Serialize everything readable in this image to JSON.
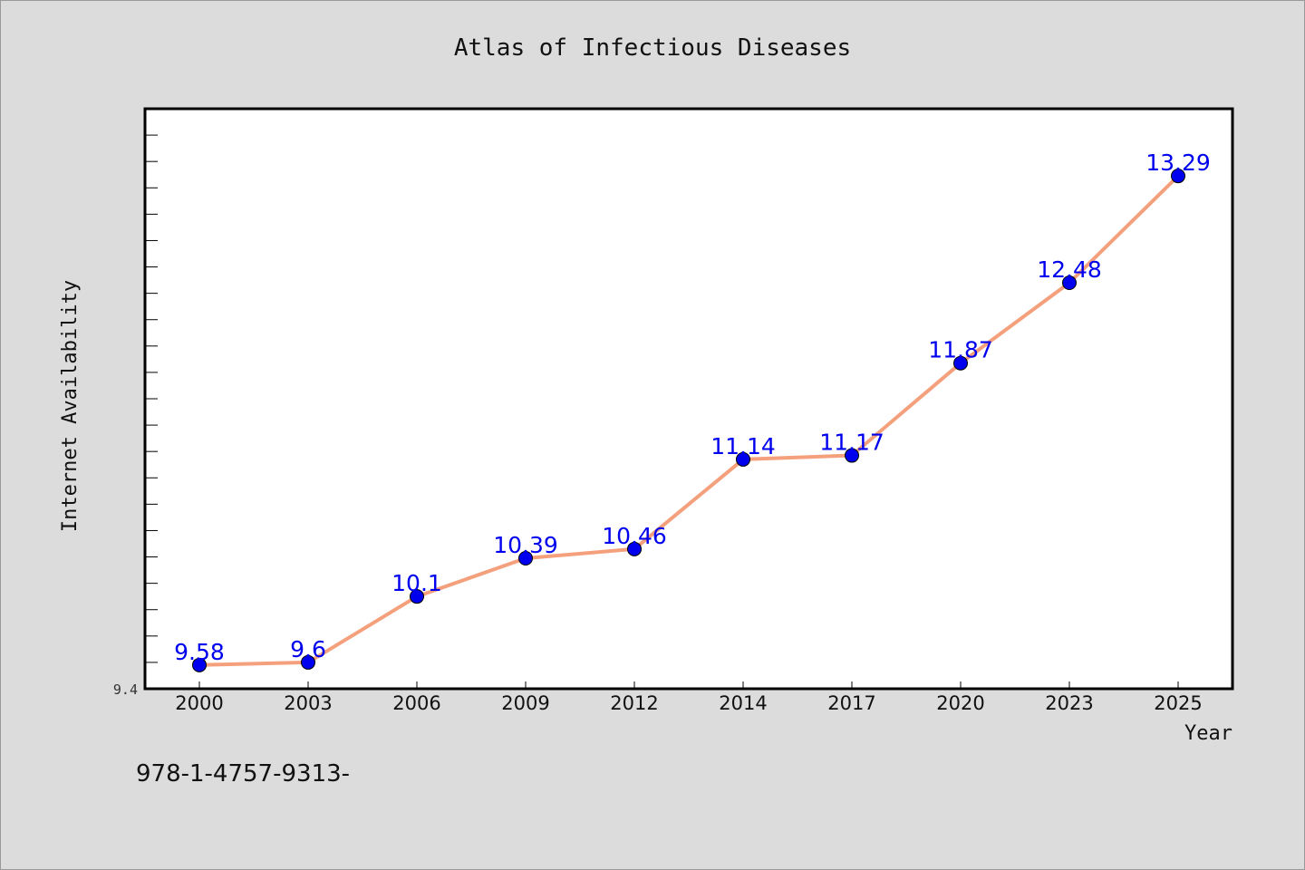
{
  "chart_data": {
    "type": "line",
    "title": "Atlas of Infectious Diseases",
    "xlabel": "Year",
    "ylabel": "Internet Availability",
    "categories": [
      "2000",
      "2003",
      "2006",
      "2009",
      "2012",
      "2014",
      "2017",
      "2020",
      "2023",
      "2025"
    ],
    "series": [
      {
        "values": [
          9.58,
          9.6,
          10.1,
          10.39,
          10.46,
          11.14,
          11.17,
          11.87,
          12.48,
          13.29
        ]
      }
    ],
    "ylim": [
      9.4,
      13.8
    ],
    "y_tick_labels": [
      "9.4"
    ],
    "grid": false,
    "line_color": "#f4a07c",
    "marker_color": "#0000ee",
    "label_color": "#0000ee"
  },
  "footer": {
    "text": "978-1-4757-9313-"
  }
}
